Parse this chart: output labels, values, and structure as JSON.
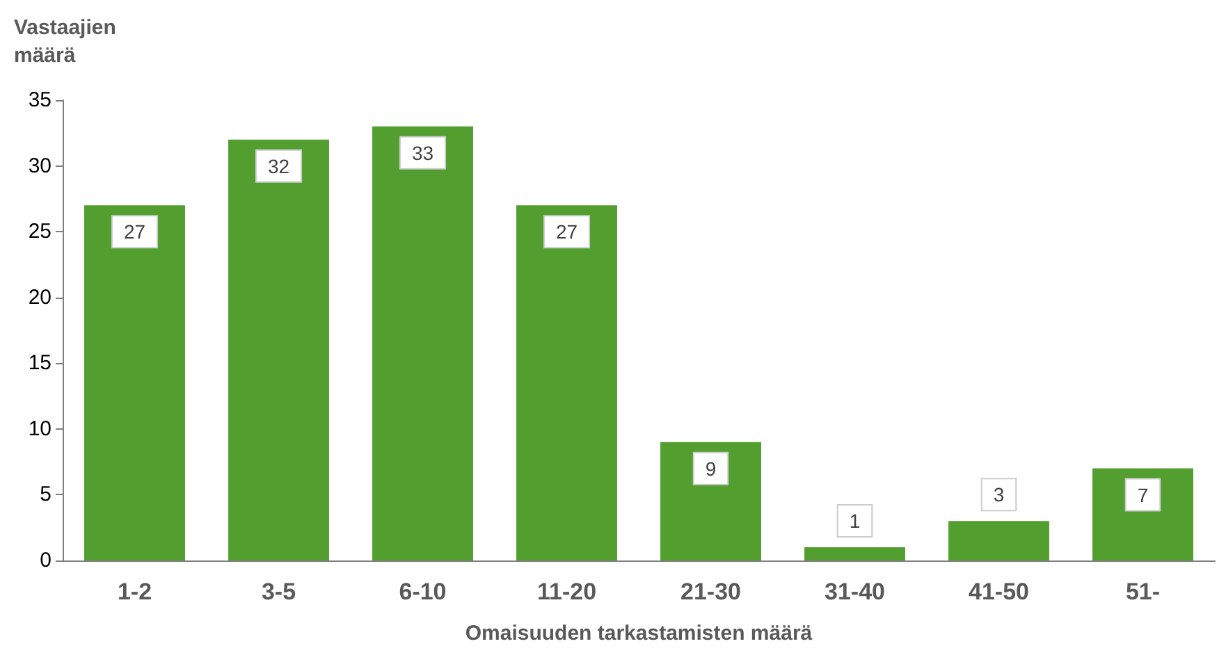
{
  "chart_data": {
    "type": "bar",
    "xlabel": "Omaisuuden tarkastamisten määrä",
    "ylabel": "Vastaajien\nmäärä",
    "categories": [
      "1-2",
      "3-5",
      "6-10",
      "11-20",
      "21-30",
      "31-40",
      "41-50",
      "51-"
    ],
    "values": [
      27,
      32,
      33,
      27,
      9,
      1,
      3,
      7
    ],
    "color": "#529e2e",
    "ylim": [
      0,
      35
    ],
    "yticks": [
      0,
      5,
      10,
      15,
      20,
      25,
      30,
      35
    ],
    "grid": false,
    "data_labels": true
  }
}
